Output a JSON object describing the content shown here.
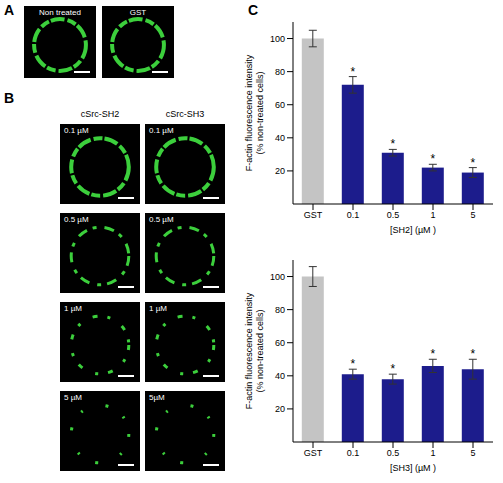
{
  "panel_A": {
    "letter": "A",
    "images": [
      "Non treated",
      "GST"
    ]
  },
  "panel_B": {
    "letter": "B",
    "columns": [
      {
        "title": "cSrc-SH2",
        "images": [
          "0.1 µM",
          "0.5 µM",
          "1 µM",
          "5 µM"
        ]
      },
      {
        "title": "cSrc-SH3",
        "images": [
          "0.1 µM",
          "0.5 µM",
          "1 µM",
          "5µM"
        ]
      }
    ]
  },
  "panel_C": {
    "letter": "C"
  },
  "chart_data": [
    {
      "type": "bar",
      "categories": [
        "GST",
        "0.1",
        "0.5",
        "1",
        "5"
      ],
      "values": [
        100,
        72,
        31,
        22,
        19
      ],
      "errors": [
        5,
        5,
        2,
        2,
        3
      ],
      "colors": [
        "#c4c4c4",
        "#1c1c8c",
        "#1c1c8c",
        "#1c1c8c",
        "#1c1c8c"
      ],
      "ylabel": "F-actin fluorescence intensity (% non-treated cells)",
      "xlabel": "[SH2] (µM )",
      "ylim": [
        0,
        110
      ],
      "yticks": [
        20,
        40,
        60,
        80,
        100
      ],
      "annotations": [
        {
          "category": "0.1",
          "text": "*"
        },
        {
          "category": "0.5",
          "text": "*"
        },
        {
          "category": "1",
          "text": "*"
        },
        {
          "category": "5",
          "text": "*"
        }
      ]
    },
    {
      "type": "bar",
      "categories": [
        "GST",
        "0.1",
        "0.5",
        "1",
        "5"
      ],
      "values": [
        100,
        41,
        38,
        46,
        44
      ],
      "errors": [
        6,
        3,
        3,
        4,
        6
      ],
      "colors": [
        "#c4c4c4",
        "#1c1c8c",
        "#1c1c8c",
        "#1c1c8c",
        "#1c1c8c"
      ],
      "ylabel": "F-actin fluorescence intensity (% non-treated cells)",
      "xlabel": "[SH3] (µM )",
      "ylim": [
        0,
        110
      ],
      "yticks": [
        20,
        40,
        60,
        80,
        100
      ],
      "annotations": [
        {
          "category": "0.1",
          "text": "*"
        },
        {
          "category": "0.5",
          "text": "*"
        },
        {
          "category": "1",
          "text": "*"
        },
        {
          "category": "5",
          "text": "*"
        }
      ]
    }
  ]
}
